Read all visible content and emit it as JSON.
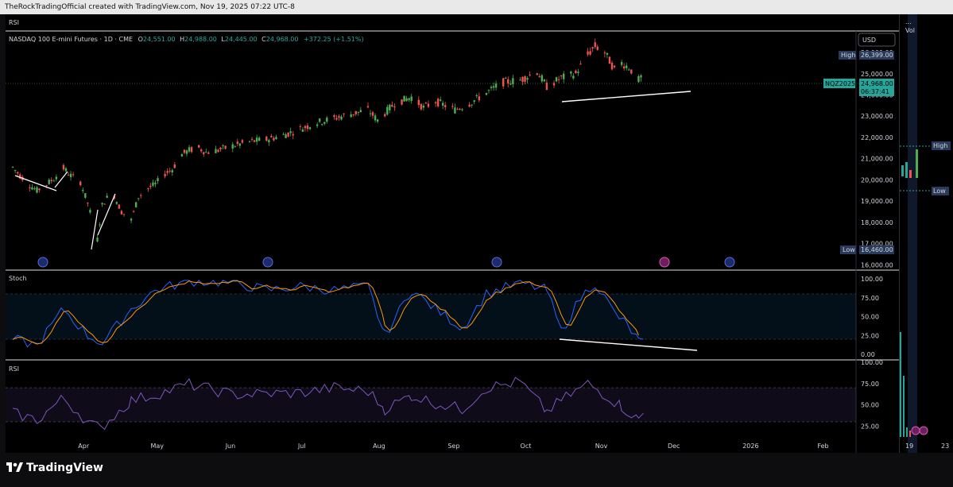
{
  "topbar": {
    "text": "TheRockTradingOfficial created with TradingView.com, Nov 19, 2025 07:22 UTC-8"
  },
  "pane_top_label": "RSI",
  "price_pane": {
    "symbol": "NASDAQ 100 E-mini Futures · 1D · CME",
    "o_label": "O",
    "o_value": "24,551.00",
    "h_label": "H",
    "h_value": "24,988.00",
    "l_label": "L",
    "l_value": "24,445.00",
    "c_label": "C",
    "c_value": "24,968.00",
    "change": "+372.25 (+1.51%)",
    "currency": "USD",
    "high_tag": "High",
    "high_value": "26,399.00",
    "low_tag": "Low",
    "low_value": "16,460.00",
    "ticker_tag": "NQZ2025",
    "last_price": "24,968.00",
    "countdown": "06:37:41"
  },
  "stoch_pane": {
    "label": "Stoch"
  },
  "rsi_pane": {
    "label": "RSI"
  },
  "right_panel": {
    "top": "...",
    "vol_label": "Vol",
    "high_tag": "High",
    "low_tag": "Low",
    "x_labels": [
      "19",
      "23"
    ]
  },
  "footer": {
    "brand": "TradingView"
  },
  "colors": {
    "up": "#26a69a",
    "up_bright": "#4caf50",
    "down": "#ef5350",
    "k": "#2962ff",
    "d": "#ff9800",
    "rsi": "#7e57c2",
    "text": "#d1d4dc"
  },
  "chart_data": [
    {
      "type": "candlestick",
      "title": "NASDAQ 100 E-mini Futures · 1D · CME",
      "x_tick_labels": [
        "Apr",
        "May",
        "Jun",
        "Jul",
        "Aug",
        "Sep",
        "Oct",
        "Nov",
        "Dec",
        "2026",
        "Feb"
      ],
      "y_tick_labels": [
        "16,000.00",
        "17,000.00",
        "18,000.00",
        "19,000.00",
        "20,000.00",
        "21,000.00",
        "22,000.00",
        "23,000.00",
        "24,000.00",
        "25,000.00",
        "26,000.00"
      ],
      "ylim": [
        15900,
        26900
      ],
      "series": [
        {
          "points": [
            [
              "2025-03-03",
              20600
            ],
            [
              "2025-03-06",
              20200
            ],
            [
              "2025-03-10",
              19750
            ],
            [
              "2025-03-13",
              19500
            ],
            [
              "2025-03-17",
              19800
            ],
            [
              "2025-03-20",
              20050
            ],
            [
              "2025-03-24",
              20550
            ],
            [
              "2025-03-27",
              20200
            ],
            [
              "2025-03-31",
              19900
            ],
            [
              "2025-04-03",
              18900
            ],
            [
              "2025-04-07",
              17200
            ],
            [
              "2025-04-09",
              18800
            ],
            [
              "2025-04-11",
              19150
            ],
            [
              "2025-04-14",
              19250
            ],
            [
              "2025-04-17",
              18500
            ],
            [
              "2025-04-21",
              18100
            ],
            [
              "2025-04-24",
              19200
            ],
            [
              "2025-04-28",
              19600
            ],
            [
              "2025-05-01",
              19800
            ],
            [
              "2025-05-05",
              20300
            ],
            [
              "2025-05-08",
              20500
            ],
            [
              "2025-05-12",
              21200
            ],
            [
              "2025-05-15",
              21400
            ],
            [
              "2025-05-19",
              21500
            ],
            [
              "2025-05-22",
              21300
            ],
            [
              "2025-05-27",
              21400
            ],
            [
              "2025-06-02",
              21600
            ],
            [
              "2025-06-09",
              21800
            ],
            [
              "2025-06-16",
              21900
            ],
            [
              "2025-06-23",
              22100
            ],
            [
              "2025-06-30",
              22400
            ],
            [
              "2025-07-07",
              22700
            ],
            [
              "2025-07-14",
              22900
            ],
            [
              "2025-07-21",
              23100
            ],
            [
              "2025-07-28",
              23300
            ],
            [
              "2025-08-01",
              22800
            ],
            [
              "2025-08-08",
              23600
            ],
            [
              "2025-08-15",
              23900
            ],
            [
              "2025-08-20",
              23400
            ],
            [
              "2025-08-25",
              23700
            ],
            [
              "2025-09-02",
              23300
            ],
            [
              "2025-09-08",
              23600
            ],
            [
              "2025-09-15",
              24100
            ],
            [
              "2025-09-22",
              24600
            ],
            [
              "2025-09-29",
              24700
            ],
            [
              "2025-10-06",
              25100
            ],
            [
              "2025-10-10",
              24400
            ],
            [
              "2025-10-16",
              24800
            ],
            [
              "2025-10-22",
              25000
            ],
            [
              "2025-10-27",
              25900
            ],
            [
              "2025-10-30",
              26300
            ],
            [
              "2025-11-03",
              26000
            ],
            [
              "2025-11-07",
              25200
            ],
            [
              "2025-11-10",
              25500
            ],
            [
              "2025-11-13",
              25300
            ],
            [
              "2025-11-17",
              24700
            ],
            [
              "2025-11-19",
              24968
            ]
          ]
        }
      ]
    },
    {
      "type": "line",
      "title": "Stoch",
      "y_tick_labels": [
        "100.00",
        "75.00",
        "50.00",
        "25.00",
        "0.00"
      ],
      "ylim": [
        0,
        100
      ],
      "series": [
        {
          "points": [
            [
              "2025-03-03",
              20
            ],
            [
              "2025-03-13",
              12
            ],
            [
              "2025-03-24",
              60
            ],
            [
              "2025-04-03",
              25
            ],
            [
              "2025-04-09",
              15
            ],
            [
              "2025-04-21",
              60
            ],
            [
              "2025-05-01",
              85
            ],
            [
              "2025-05-15",
              97
            ],
            [
              "2025-06-02",
              95
            ],
            [
              "2025-06-16",
              85
            ],
            [
              "2025-06-30",
              90
            ],
            [
              "2025-07-14",
              85
            ],
            [
              "2025-07-28",
              90
            ],
            [
              "2025-08-04",
              25
            ],
            [
              "2025-08-15",
              85
            ],
            [
              "2025-08-25",
              60
            ],
            [
              "2025-09-05",
              35
            ],
            [
              "2025-09-15",
              80
            ],
            [
              "2025-09-29",
              95
            ],
            [
              "2025-10-10",
              85
            ],
            [
              "2025-10-16",
              30
            ],
            [
              "2025-10-24",
              75
            ],
            [
              "2025-10-30",
              95
            ],
            [
              "2025-11-07",
              55
            ],
            [
              "2025-11-12",
              40
            ],
            [
              "2025-11-17",
              18
            ],
            [
              "2025-11-19",
              20
            ]
          ]
        }
      ]
    },
    {
      "type": "line",
      "title": "RSI",
      "y_tick_labels": [
        "100.00",
        "75.00",
        "50.00",
        "25.00"
      ],
      "ylim": [
        0,
        100
      ],
      "series": [
        {
          "points": [
            [
              "2025-03-03",
              40
            ],
            [
              "2025-03-13",
              32
            ],
            [
              "2025-03-24",
              58
            ],
            [
              "2025-04-03",
              30
            ],
            [
              "2025-04-08",
              22
            ],
            [
              "2025-04-21",
              55
            ],
            [
              "2025-05-01",
              62
            ],
            [
              "2025-05-15",
              74
            ],
            [
              "2025-06-02",
              62
            ],
            [
              "2025-06-16",
              63
            ],
            [
              "2025-06-30",
              64
            ],
            [
              "2025-07-14",
              70
            ],
            [
              "2025-07-28",
              66
            ],
            [
              "2025-08-04",
              45
            ],
            [
              "2025-08-15",
              61
            ],
            [
              "2025-08-25",
              52
            ],
            [
              "2025-09-05",
              45
            ],
            [
              "2025-09-15",
              70
            ],
            [
              "2025-09-29",
              77
            ],
            [
              "2025-10-10",
              42
            ],
            [
              "2025-10-16",
              55
            ],
            [
              "2025-10-27",
              75
            ],
            [
              "2025-11-03",
              62
            ],
            [
              "2025-11-10",
              48
            ],
            [
              "2025-11-17",
              32
            ],
            [
              "2025-11-19",
              40
            ]
          ]
        }
      ]
    }
  ]
}
